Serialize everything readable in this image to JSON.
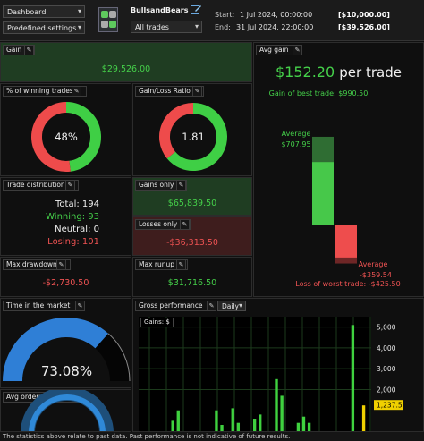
{
  "toolbar": {
    "view_select": "Dashboard",
    "settings_select": "Predefined settings",
    "strategy_name": "BullsandBears",
    "trades_select": "All trades",
    "start_label": "Start:",
    "end_label": "End:",
    "start_date": "1 Jul 2024, 00:00:00",
    "start_value": "[$10,000.00]",
    "end_date": "31 Jul 2024, 22:00:00",
    "end_value": "[$39,526.00]"
  },
  "gain": {
    "title": "Gain",
    "value": "$29,526.00"
  },
  "avg_gain": {
    "title": "Avg gain",
    "headline_value": "$152.20",
    "headline_unit": "per trade",
    "best_label": "Gain of best trade: $990.50",
    "average_label": "Average",
    "average_value": "$707.95",
    "loss_average_label": "Average",
    "loss_average_value": "-$359.54",
    "worst_label": "Loss of worst trade: -$425.50",
    "best": 990.5,
    "avg_win": 707.95,
    "avg_loss": -359.54,
    "worst": -425.5
  },
  "win_pct": {
    "title": "% of winning trades",
    "value_label": "48%",
    "fraction": 0.48
  },
  "gl_ratio": {
    "title": "Gain/Loss Ratio",
    "value_label": "1.81",
    "fraction": 0.64
  },
  "distribution": {
    "title": "Trade distribution",
    "total": "Total: 194",
    "winning": "Winning: 93",
    "neutral": "Neutral: 0",
    "losing": "Losing: 101"
  },
  "gains_only": {
    "title": "Gains only",
    "value": "$65,839.50"
  },
  "losses_only": {
    "title": "Losses only",
    "value": "-$36,313.50"
  },
  "max_drawdown": {
    "title": "Max drawdown",
    "value": "-$2,730.50"
  },
  "max_runup": {
    "title": "Max runup",
    "value": "$31,716.50"
  },
  "time_in_market": {
    "title": "Time in the market",
    "value_label": "73.08%",
    "fraction": 0.7308
  },
  "avg_orders": {
    "title": "Avg orders exec/day"
  },
  "gross_performance": {
    "title": "Gross performance",
    "period_select": "Daily",
    "series_label": "Gains: $",
    "last_value_label": "1,237.5",
    "colors": {
      "bar": "#3fd13f",
      "last": "#f0d000",
      "grid": "#1c3a1c"
    }
  },
  "chart_data": {
    "type": "bar",
    "title": "Gross performance",
    "series": [
      {
        "name": "Gains: $",
        "values": [
          0,
          0,
          0,
          0,
          0,
          500,
          1000,
          0,
          0,
          0,
          0,
          0,
          0,
          1000,
          300,
          0,
          1100,
          400,
          0,
          0,
          600,
          800,
          0,
          0,
          2500,
          1700,
          0,
          0,
          400,
          700,
          400,
          0,
          0,
          0,
          0,
          0,
          0,
          0,
          5100,
          0,
          1237.5
        ]
      }
    ],
    "ylim": [
      0,
      5500
    ],
    "yticks": [
      "2,000",
      "3,000",
      "4,000",
      "5,000"
    ],
    "ytick_values": [
      2000,
      3000,
      4000,
      5000
    ],
    "grid": true
  },
  "footer": {
    "text": "The statistics above relate to past data. Past performance is not indicative of future results."
  }
}
